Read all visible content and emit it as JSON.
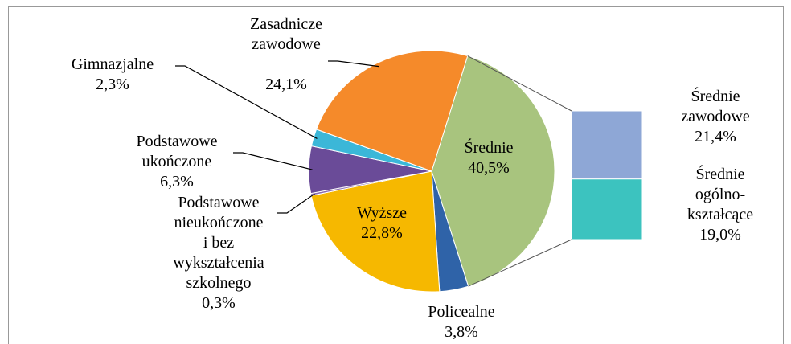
{
  "chart_data": {
    "type": "pie",
    "categories": [
      "Średnie",
      "Policealne",
      "Wyższe",
      "Podstawowe\nnieukończone\ni bez\nwykształcenia\nszkolnego",
      "Podstawowe\nukończone",
      "Gimnazjalne",
      "Zasadnicze\nzawodowe"
    ],
    "values": [
      40.5,
      3.8,
      22.8,
      0.3,
      6.3,
      2.3,
      24.1
    ],
    "value_labels": [
      "40,5%",
      "3,8%",
      "22,8%",
      "0,3%",
      "6,3%",
      "2,3%",
      "24,1%"
    ],
    "colors": [
      "#a8c47e",
      "#2f63a8",
      "#f6b800",
      "#8a6bb0",
      "#6a4b98",
      "#3bb7d8",
      "#f58a2a"
    ],
    "breakdown": {
      "type": "bar",
      "categories": [
        "Średnie\nzawodowe",
        "Średnie\nogólno-\nkształcące"
      ],
      "values": [
        21.4,
        19.0
      ],
      "value_labels": [
        "21,4%",
        "19,0%"
      ],
      "colors": [
        "#8ea7d6",
        "#3cc3bf"
      ]
    }
  }
}
